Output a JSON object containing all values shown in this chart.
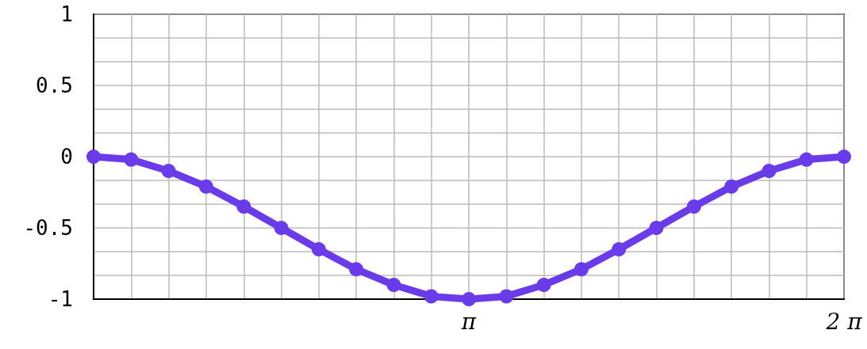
{
  "chart_data": {
    "type": "line",
    "x": [
      0,
      0.314,
      0.628,
      0.942,
      1.257,
      1.571,
      1.885,
      2.199,
      2.513,
      2.827,
      3.142,
      3.456,
      3.77,
      4.084,
      4.398,
      4.712,
      5.027,
      5.341,
      5.655,
      5.969,
      6.283
    ],
    "series": [
      {
        "color": "#6a3be8",
        "values": [
          0,
          -0.02,
          -0.1,
          -0.21,
          -0.35,
          -0.5,
          -0.65,
          -0.79,
          -0.9,
          -0.98,
          -1,
          -0.98,
          -0.9,
          -0.79,
          -0.65,
          -0.5,
          -0.35,
          -0.21,
          -0.1,
          -0.02,
          0
        ]
      }
    ],
    "xlim": [
      0,
      6.283
    ],
    "xticks": [
      {
        "value": 0,
        "label": null
      },
      {
        "value": 0.314,
        "label": null
      },
      {
        "value": 0.628,
        "label": null
      },
      {
        "value": 0.942,
        "label": null
      },
      {
        "value": 1.257,
        "label": null
      },
      {
        "value": 1.571,
        "label": null
      },
      {
        "value": 1.885,
        "label": null
      },
      {
        "value": 2.199,
        "label": null
      },
      {
        "value": 2.513,
        "label": null
      },
      {
        "value": 2.827,
        "label": null
      },
      {
        "value": 3.142,
        "label": "π"
      },
      {
        "value": 3.456,
        "label": null
      },
      {
        "value": 3.77,
        "label": null
      },
      {
        "value": 4.084,
        "label": null
      },
      {
        "value": 4.398,
        "label": null
      },
      {
        "value": 4.712,
        "label": null
      },
      {
        "value": 5.027,
        "label": null
      },
      {
        "value": 5.341,
        "label": null
      },
      {
        "value": 5.655,
        "label": null
      },
      {
        "value": 5.969,
        "label": null
      },
      {
        "value": 6.283,
        "label": "2 π"
      }
    ],
    "ylim": [
      -1,
      1
    ],
    "yticks": [
      -1,
      -0.5,
      0,
      0.5,
      1
    ],
    "grid": true,
    "marker": "circle",
    "line_style": "solid"
  }
}
